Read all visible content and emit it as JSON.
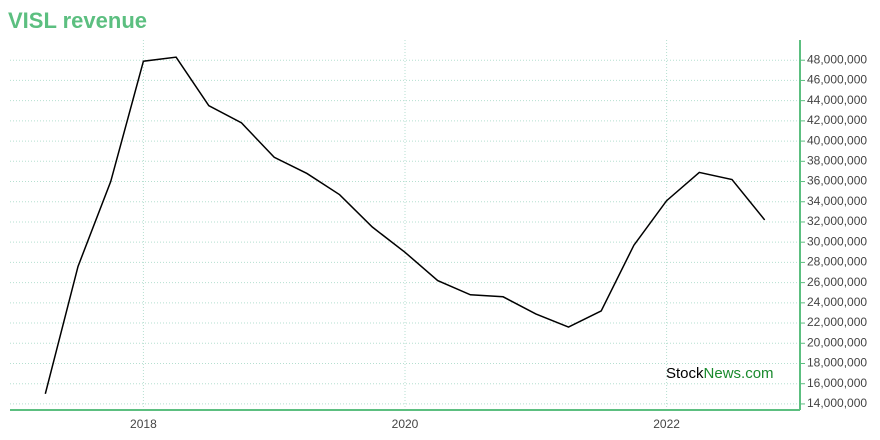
{
  "chart_data": {
    "type": "line",
    "title": "VISL revenue",
    "x": [
      2017.25,
      2017.5,
      2017.75,
      2018,
      2018.25,
      2018.5,
      2018.75,
      2019,
      2019.25,
      2019.5,
      2019.75,
      2020,
      2020.25,
      2020.5,
      2020.75,
      2021,
      2021.25,
      2021.5,
      2021.75,
      2022,
      2022.25,
      2022.5,
      2022.75
    ],
    "series": [
      {
        "name": "VISL revenue",
        "color": "#000000",
        "values": [
          15000000,
          27600000,
          36000000,
          47900000,
          48300000,
          43500000,
          41800000,
          38400000,
          36800000,
          34700000,
          31500000,
          29000000,
          26200000,
          24800000,
          24600000,
          22900000,
          21600000,
          23200000,
          29700000,
          34100000,
          36900000,
          36200000,
          32200000
        ]
      }
    ],
    "xlim": [
      2016.98,
      2023.02
    ],
    "xticks": [
      2018,
      2020,
      2022
    ],
    "ylim": [
      13400000,
      50000000
    ],
    "yticks": [
      {
        "value": 14000000,
        "label": "14,000,000"
      },
      {
        "value": 16000000,
        "label": "16,000,000"
      },
      {
        "value": 18000000,
        "label": "18,000,000"
      },
      {
        "value": 20000000,
        "label": "20,000,000"
      },
      {
        "value": 22000000,
        "label": "22,000,000"
      },
      {
        "value": 24000000,
        "label": "24,000,000"
      },
      {
        "value": 26000000,
        "label": "26,000,000"
      },
      {
        "value": 28000000,
        "label": "28,000,000"
      },
      {
        "value": 30000000,
        "label": "30,000,000"
      },
      {
        "value": 32000000,
        "label": "32,000,000"
      },
      {
        "value": 34000000,
        "label": "34,000,000"
      },
      {
        "value": 36000000,
        "label": "36,000,000"
      },
      {
        "value": 38000000,
        "label": "38,000,000"
      },
      {
        "value": 40000000,
        "label": "40,000,000"
      },
      {
        "value": 42000000,
        "label": "42,000,000"
      },
      {
        "value": 44000000,
        "label": "44,000,000"
      },
      {
        "value": 46000000,
        "label": "46,000,000"
      },
      {
        "value": 48000000,
        "label": "48,000,000"
      }
    ],
    "grid": true,
    "axis_color": "#5cbf80",
    "grid_color": "#b5dfd0",
    "watermark": {
      "left": "Stock",
      "right": "News.com",
      "right_color": "#1a8a2e"
    }
  }
}
